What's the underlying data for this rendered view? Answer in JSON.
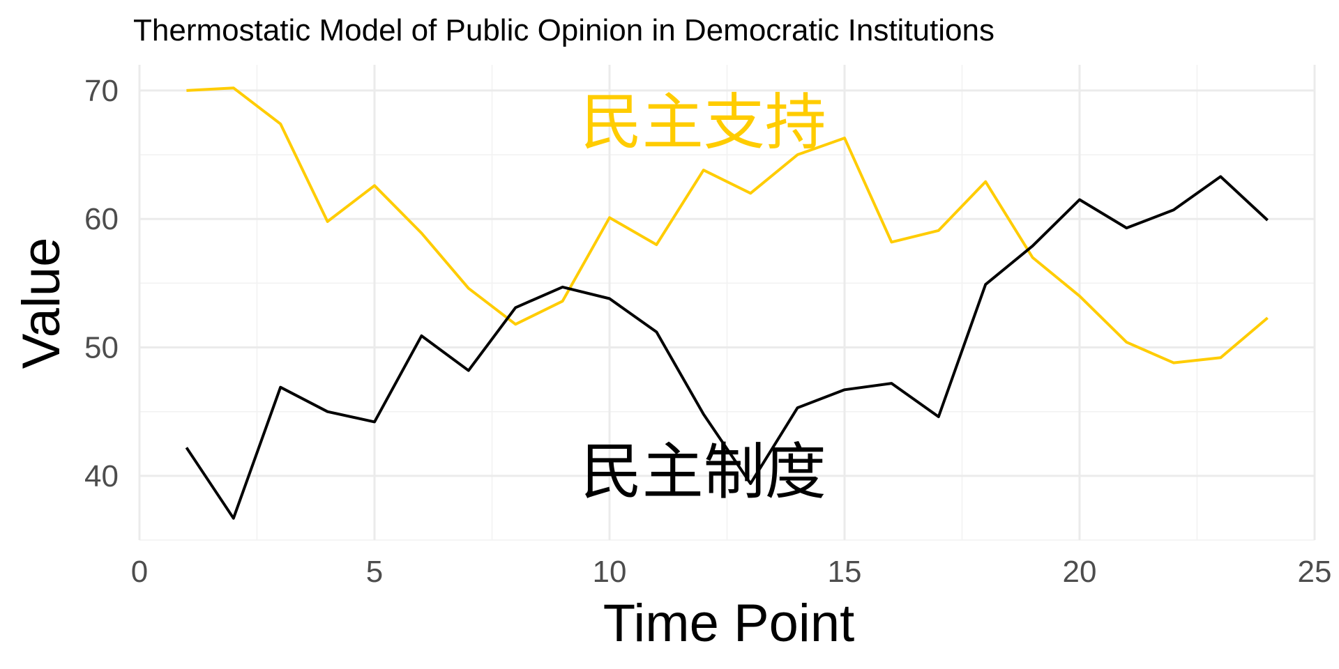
{
  "chart_data": {
    "type": "line",
    "title": "Thermostatic Model of Public Opinion in Democratic Institutions",
    "xlabel": "Time Point",
    "ylabel": "Value",
    "xlim": [
      0,
      25
    ],
    "ylim": [
      35,
      72
    ],
    "x_ticks": [
      0,
      5,
      10,
      15,
      20,
      25
    ],
    "y_ticks": [
      40,
      50,
      60,
      70
    ],
    "grid": true,
    "legend": "none",
    "x": [
      1,
      2,
      3,
      4,
      5,
      6,
      7,
      8,
      9,
      10,
      11,
      12,
      13,
      14,
      15,
      16,
      17,
      18,
      19,
      20,
      21,
      22,
      23,
      24
    ],
    "series": [
      {
        "name": "民主支持",
        "color": "#FFCC00",
        "values": [
          70.0,
          70.2,
          67.4,
          59.8,
          62.6,
          58.9,
          54.6,
          51.8,
          53.6,
          60.1,
          58.0,
          63.8,
          62.0,
          65.0,
          66.3,
          58.2,
          59.1,
          62.9,
          57.0,
          54.0,
          50.4,
          48.8,
          49.2,
          52.3
        ]
      },
      {
        "name": "民主制度",
        "color": "#000000",
        "values": [
          42.2,
          36.7,
          46.9,
          45.0,
          44.2,
          50.9,
          48.2,
          53.1,
          54.7,
          53.8,
          51.2,
          44.8,
          39.4,
          45.3,
          46.7,
          47.2,
          44.6,
          54.9,
          57.9,
          61.5,
          59.3,
          60.7,
          63.3,
          59.9
        ]
      }
    ],
    "annotations": [
      {
        "text": "民主支持",
        "x": 12,
        "y": 67.5,
        "color": "#FFCC00"
      },
      {
        "text": "民主制度",
        "x": 12,
        "y": 40.3,
        "color": "#000000"
      }
    ]
  }
}
